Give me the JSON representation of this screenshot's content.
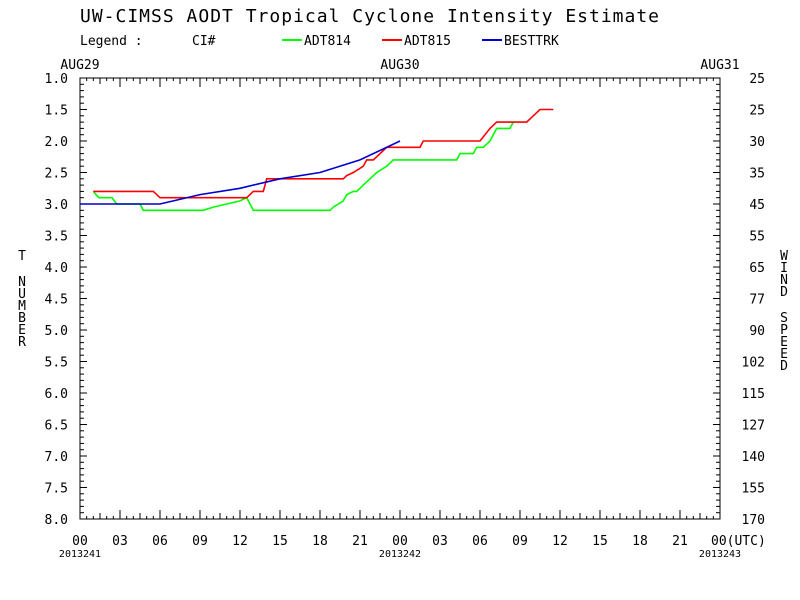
{
  "chart_data": {
    "type": "line",
    "title": "UW-CIMSS AODT Tropical Cyclone Intensity Estimate",
    "legend_label": "Legend :",
    "legend_ci": "CI#",
    "legend_placement": "top",
    "ylabel_left": "T NUMBER",
    "ylabel_right": "WIND SPEED",
    "x_unit": "hours from 2013241 00 UTC",
    "xlim": [
      0,
      96
    ],
    "ylim": [
      1.0,
      8.0
    ],
    "y_inverted": true,
    "date_labels_top": [
      {
        "x": 0,
        "label": "AUG29"
      },
      {
        "x": 48,
        "label": "AUG30"
      },
      {
        "x": 96,
        "label": "AUG31"
      }
    ],
    "date_labels_bottom": [
      {
        "x": 0,
        "label": "2013241"
      },
      {
        "x": 48,
        "label": "2013242"
      },
      {
        "x": 96,
        "label": "2013243"
      }
    ],
    "x_ticks": [
      {
        "x": 0,
        "label": "00"
      },
      {
        "x": 6,
        "label": "03"
      },
      {
        "x": 12,
        "label": "06"
      },
      {
        "x": 18,
        "label": "09"
      },
      {
        "x": 24,
        "label": "12"
      },
      {
        "x": 30,
        "label": "15"
      },
      {
        "x": 36,
        "label": "18"
      },
      {
        "x": 42,
        "label": "21"
      },
      {
        "x": 48,
        "label": "00"
      },
      {
        "x": 54,
        "label": "03"
      },
      {
        "x": 60,
        "label": "06"
      },
      {
        "x": 66,
        "label": "09"
      },
      {
        "x": 72,
        "label": "12"
      },
      {
        "x": 78,
        "label": "15"
      },
      {
        "x": 84,
        "label": "18"
      },
      {
        "x": 90,
        "label": "21"
      },
      {
        "x": 96,
        "label": "00(UTC)"
      }
    ],
    "y_ticks_left": [
      "1.0",
      "1.5",
      "2.0",
      "2.5",
      "3.0",
      "3.5",
      "4.0",
      "4.5",
      "5.0",
      "5.5",
      "6.0",
      "6.5",
      "7.0",
      "7.5",
      "8.0"
    ],
    "y_ticks_right": [
      "25",
      "25",
      "30",
      "35",
      "45",
      "55",
      "65",
      "77",
      "90",
      "102",
      "115",
      "127",
      "140",
      "155",
      "170"
    ],
    "series": [
      {
        "name": "ADT814",
        "color": "#00ff00",
        "points": [
          [
            2.0,
            2.8
          ],
          [
            2.8,
            2.9
          ],
          [
            4.8,
            2.9
          ],
          [
            5.5,
            3.0
          ],
          [
            9.0,
            3.0
          ],
          [
            9.5,
            3.1
          ],
          [
            18.5,
            3.1
          ],
          [
            20.0,
            3.05
          ],
          [
            22.0,
            3.0
          ],
          [
            24.0,
            2.95
          ],
          [
            25.0,
            2.9
          ],
          [
            25.5,
            3.0
          ],
          [
            26.0,
            3.1
          ],
          [
            37.5,
            3.1
          ],
          [
            38.0,
            3.05
          ],
          [
            39.5,
            2.95
          ],
          [
            40.0,
            2.85
          ],
          [
            41.0,
            2.8
          ],
          [
            41.5,
            2.8
          ],
          [
            42.5,
            2.7
          ],
          [
            44.5,
            2.5
          ],
          [
            46.0,
            2.4
          ],
          [
            47.0,
            2.3
          ],
          [
            56.5,
            2.3
          ],
          [
            57.0,
            2.2
          ],
          [
            59.0,
            2.2
          ],
          [
            59.5,
            2.1
          ],
          [
            60.5,
            2.1
          ],
          [
            61.5,
            2.0
          ],
          [
            62.0,
            1.9
          ],
          [
            62.5,
            1.8
          ],
          [
            64.5,
            1.8
          ],
          [
            65.0,
            1.7
          ]
        ]
      },
      {
        "name": "ADT815",
        "color": "#ff0000",
        "points": [
          [
            2.0,
            2.8
          ],
          [
            11.0,
            2.8
          ],
          [
            12.0,
            2.9
          ],
          [
            24.0,
            2.9
          ],
          [
            25.0,
            2.9
          ],
          [
            25.5,
            2.85
          ],
          [
            26.0,
            2.8
          ],
          [
            27.5,
            2.8
          ],
          [
            28.0,
            2.6
          ],
          [
            39.5,
            2.6
          ],
          [
            40.0,
            2.55
          ],
          [
            41.0,
            2.5
          ],
          [
            42.5,
            2.4
          ],
          [
            43.0,
            2.3
          ],
          [
            44.0,
            2.3
          ],
          [
            44.5,
            2.25
          ],
          [
            46.0,
            2.1
          ],
          [
            51.0,
            2.1
          ],
          [
            51.5,
            2.0
          ],
          [
            60.0,
            2.0
          ],
          [
            61.5,
            1.8
          ],
          [
            62.0,
            1.75
          ],
          [
            62.5,
            1.7
          ],
          [
            67.0,
            1.7
          ],
          [
            68.0,
            1.6
          ],
          [
            69.0,
            1.5
          ],
          [
            71.0,
            1.5
          ]
        ]
      },
      {
        "name": "BESTTRK",
        "color": "#0000cc",
        "points": [
          [
            0.0,
            3.0
          ],
          [
            12.0,
            3.0
          ],
          [
            18.0,
            2.85
          ],
          [
            24.0,
            2.75
          ],
          [
            30.0,
            2.6
          ],
          [
            36.0,
            2.5
          ],
          [
            42.0,
            2.3
          ],
          [
            48.0,
            2.0
          ]
        ]
      }
    ]
  }
}
